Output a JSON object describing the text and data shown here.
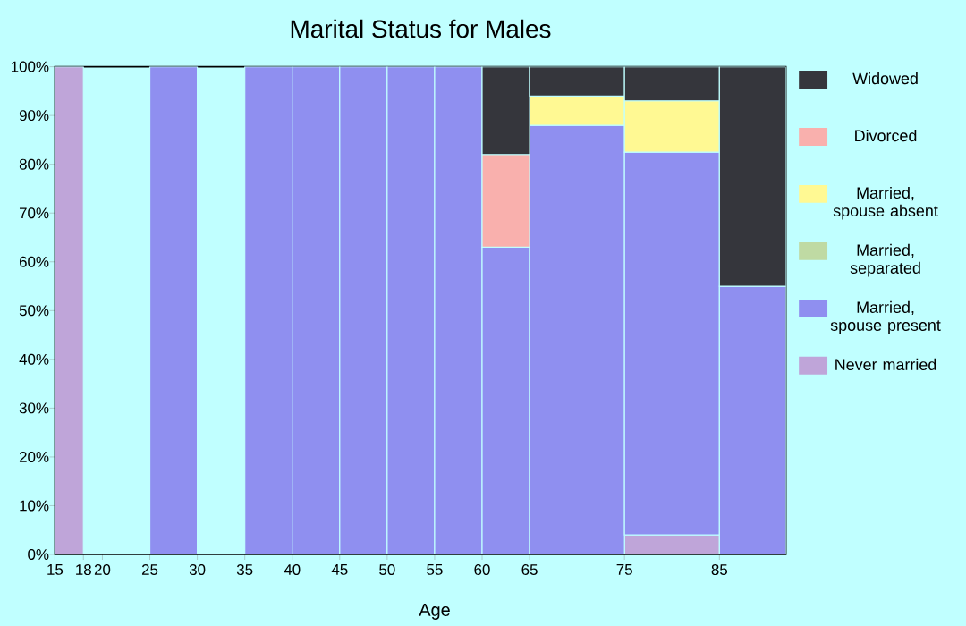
{
  "chart_data": {
    "type": "bar",
    "stacked": true,
    "title": "Marital Status for Males",
    "xlabel": "Age",
    "x": [
      16.5,
      19,
      22.5,
      27.5,
      32.5,
      37.5,
      42.5,
      47.5,
      52.5,
      57.5,
      62.5,
      70,
      80,
      88.5
    ],
    "xlim": [
      15,
      92
    ],
    "xticks": [
      15,
      18,
      20,
      25,
      30,
      35,
      40,
      45,
      50,
      55,
      60,
      65,
      75,
      85
    ],
    "ylim": [
      0,
      100
    ],
    "yticks": [
      {
        "value": 0,
        "label": "0%"
      },
      {
        "value": 10,
        "label": "10%"
      },
      {
        "value": 20,
        "label": "20%"
      },
      {
        "value": 30,
        "label": "30%"
      },
      {
        "value": 40,
        "label": "40%"
      },
      {
        "value": 50,
        "label": "50%"
      },
      {
        "value": 60,
        "label": "60%"
      },
      {
        "value": 70,
        "label": "70%"
      },
      {
        "value": 80,
        "label": "80%"
      },
      {
        "value": 90,
        "label": "90%"
      },
      {
        "value": 100,
        "label": "100%"
      }
    ],
    "legend": "right",
    "grid": false,
    "series": [
      {
        "name": "Never married",
        "color": "#bfa5d9",
        "values": [
          100,
          null,
          null,
          0,
          null,
          0,
          0,
          0,
          0,
          0,
          0,
          0,
          4,
          0
        ]
      },
      {
        "name": "Married, spouse present",
        "color": "#8f8ff0",
        "values": [
          0,
          null,
          null,
          100,
          null,
          100,
          100,
          100,
          100,
          100,
          63,
          88,
          78.5,
          55
        ]
      },
      {
        "name": "Married, separated",
        "color": "#bfdaa3",
        "values": [
          0,
          null,
          null,
          0,
          null,
          0,
          0,
          0,
          0,
          0,
          0,
          0,
          0,
          0
        ]
      },
      {
        "name": "Married, spouse absent",
        "color": "#fff993",
        "values": [
          0,
          null,
          null,
          0,
          null,
          0,
          0,
          0,
          0,
          0,
          0,
          6,
          10.5,
          0
        ]
      },
      {
        "name": "Divorced",
        "color": "#f9b0ad",
        "values": [
          0,
          null,
          null,
          0,
          null,
          0,
          0,
          0,
          0,
          0,
          19,
          0,
          0,
          0
        ]
      },
      {
        "name": "Widowed",
        "color": "#35363c",
        "values": [
          0,
          null,
          null,
          0,
          null,
          0,
          0,
          0,
          0,
          0,
          18,
          6,
          7,
          45
        ]
      }
    ]
  }
}
